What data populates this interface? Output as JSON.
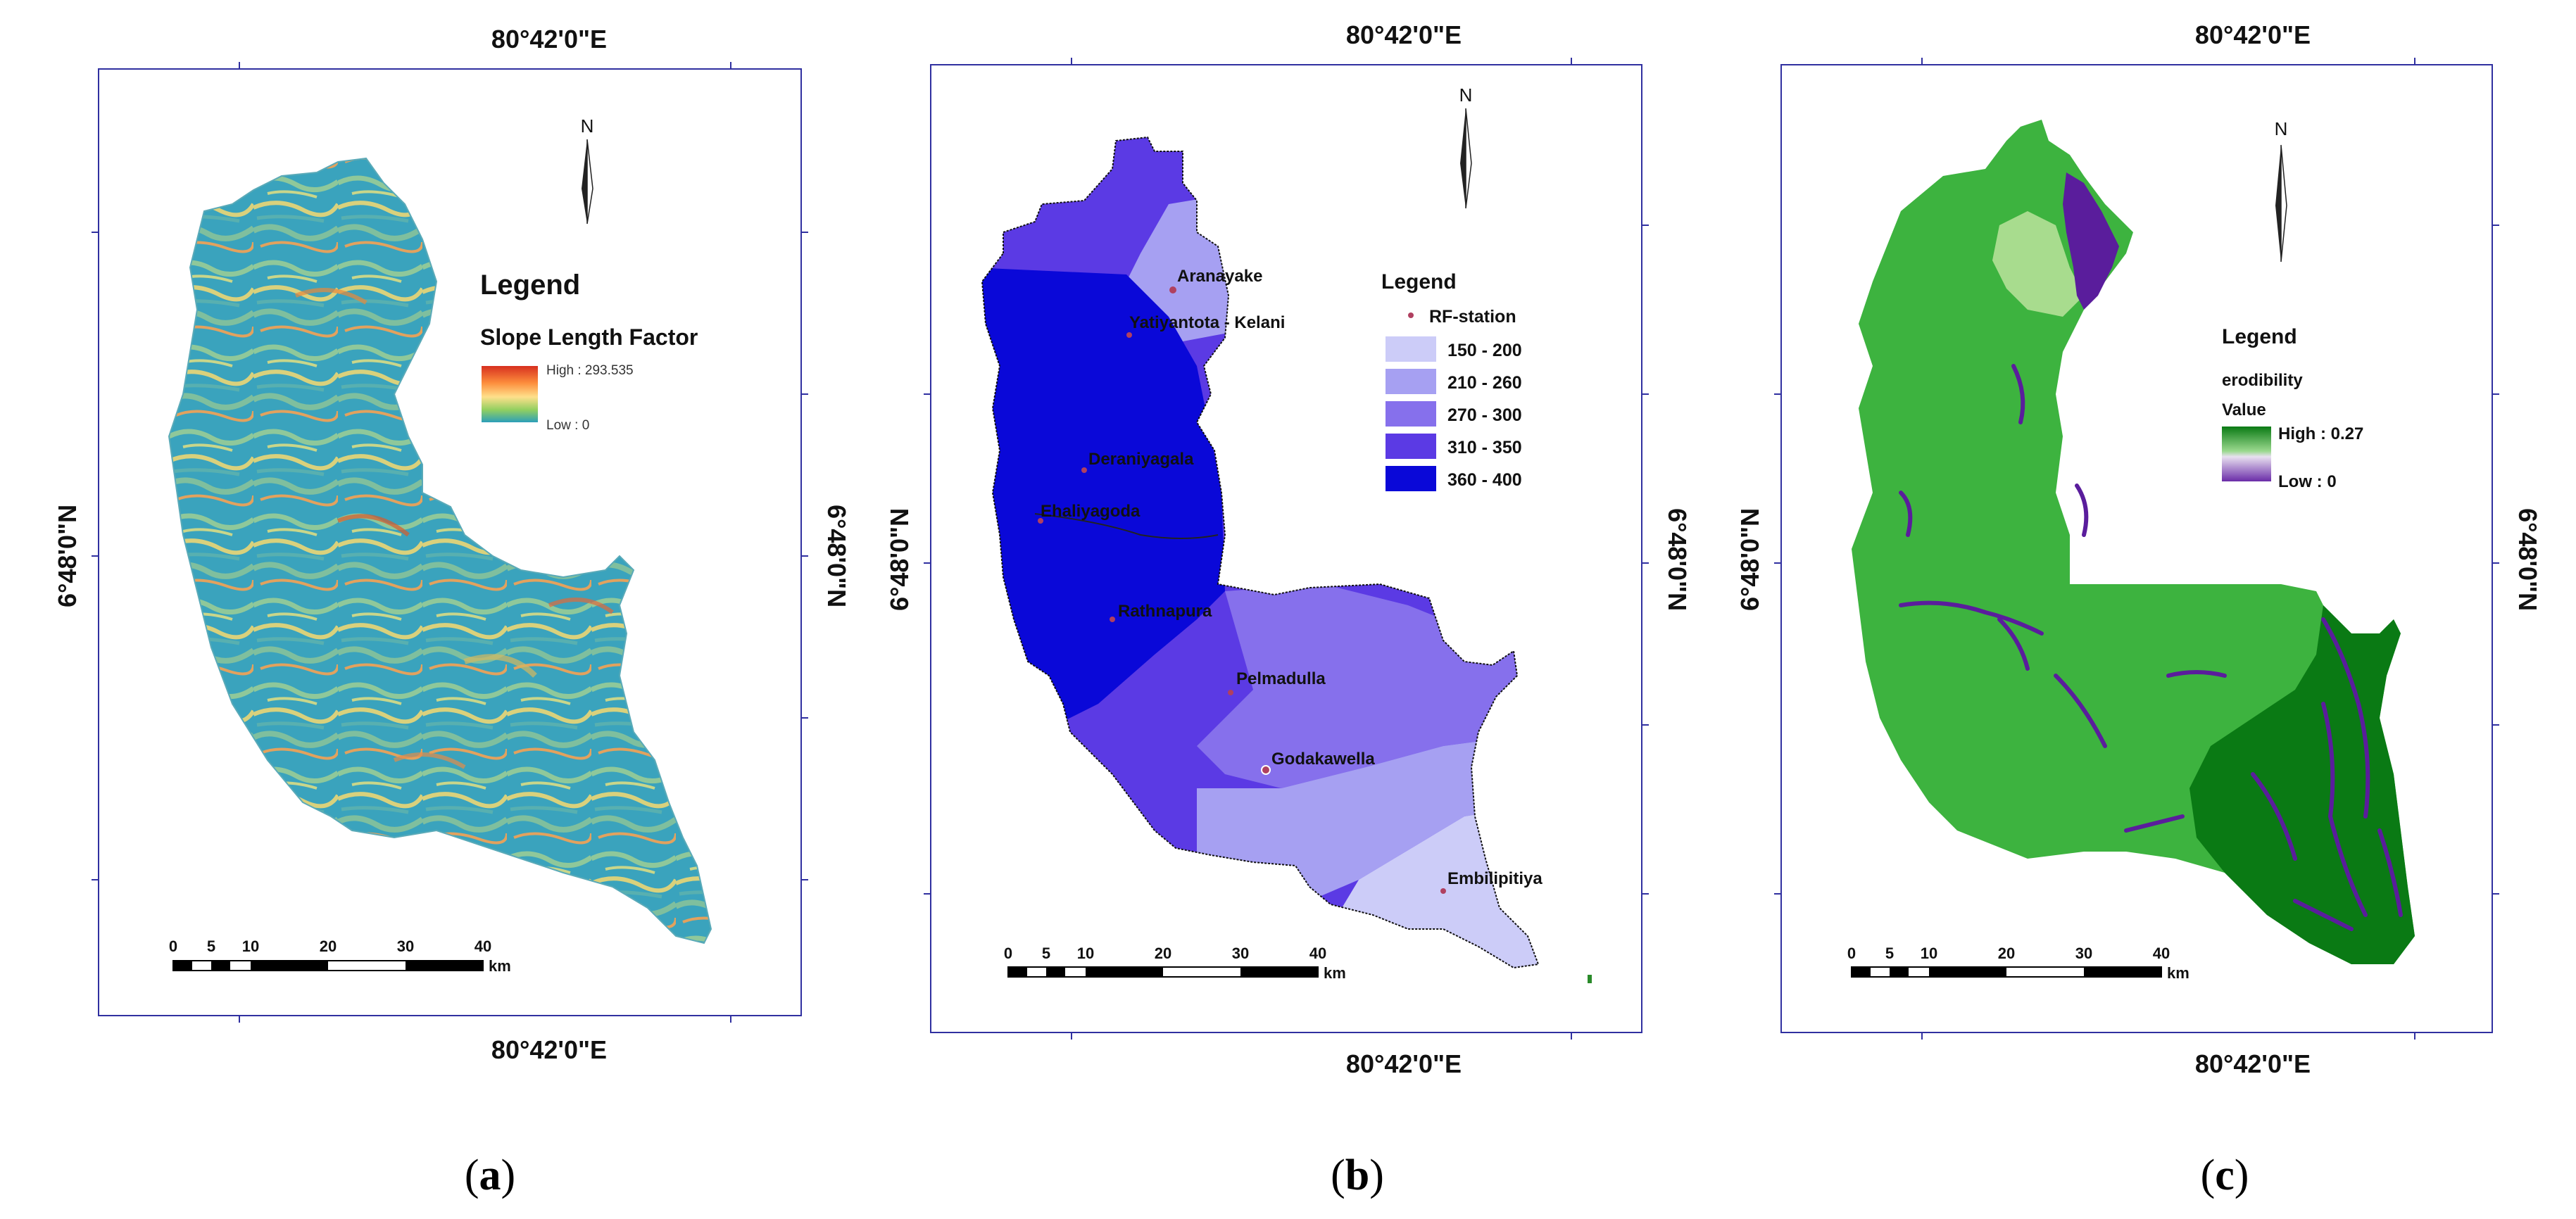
{
  "panels": [
    {
      "id": "a",
      "caption_letter": "a",
      "coord_top": "80°42'0\"E",
      "coord_bottom": "80°42'0\"E",
      "coord_left": "6°48'0\"N",
      "coord_right": "6°48'0\"N",
      "north": "N",
      "legend": {
        "title": "Legend",
        "subtitle": "Slope Length Factor",
        "high": "High : 293.535",
        "low": "Low : 0",
        "ramp": [
          "#d7301f",
          "#fd8d3c",
          "#fee08b",
          "#91cf60",
          "#2c9fb9"
        ]
      },
      "scale": {
        "ticks": [
          "0",
          "5",
          "10",
          "20",
          "30",
          "40"
        ],
        "unit": "km"
      }
    },
    {
      "id": "b",
      "caption_letter": "b",
      "coord_top": "80°42'0\"E",
      "coord_bottom": "80°42'0\"E",
      "coord_left": "6°48'0\"N",
      "coord_right": "6°48'0\"N",
      "north": "N",
      "legend": {
        "title": "Legend",
        "station_label": "RF-station",
        "classes": [
          {
            "label": "150 - 200",
            "color": "#ccccf8"
          },
          {
            "label": "210 - 260",
            "color": "#a6a0f2"
          },
          {
            "label": "270 - 300",
            "color": "#8670ec"
          },
          {
            "label": "310 - 350",
            "color": "#5b3ae4"
          },
          {
            "label": "360 - 400",
            "color": "#0a08d8"
          }
        ]
      },
      "stations": [
        "Aranayake",
        "Yatiyantota - Kelani",
        "Deraniyagala",
        "Ehaliyagoda",
        "Rathnapura",
        "Pelmadulla",
        "Godakawella",
        "Embilipitiya"
      ],
      "scale": {
        "ticks": [
          "0",
          "5",
          "10",
          "20",
          "30",
          "40"
        ],
        "unit": "km"
      }
    },
    {
      "id": "c",
      "caption_letter": "c",
      "coord_top": "80°42'0\"E",
      "coord_bottom": "80°42'0\"E",
      "coord_left": "6°48'0\"N",
      "coord_right": "6°48'0\"N",
      "north": "N",
      "legend": {
        "title": "Legend",
        "subtitle": "erodibility",
        "value_label": "Value",
        "high": "High : 0.27",
        "low": "Low : 0",
        "colors": {
          "dark_green": "#0a7a14",
          "mid_green": "#3db33f",
          "light_green": "#a8dc8e",
          "purple": "#5a1d9c"
        }
      },
      "scale": {
        "ticks": [
          "0",
          "5",
          "10",
          "20",
          "30",
          "40"
        ],
        "unit": "km"
      }
    }
  ]
}
